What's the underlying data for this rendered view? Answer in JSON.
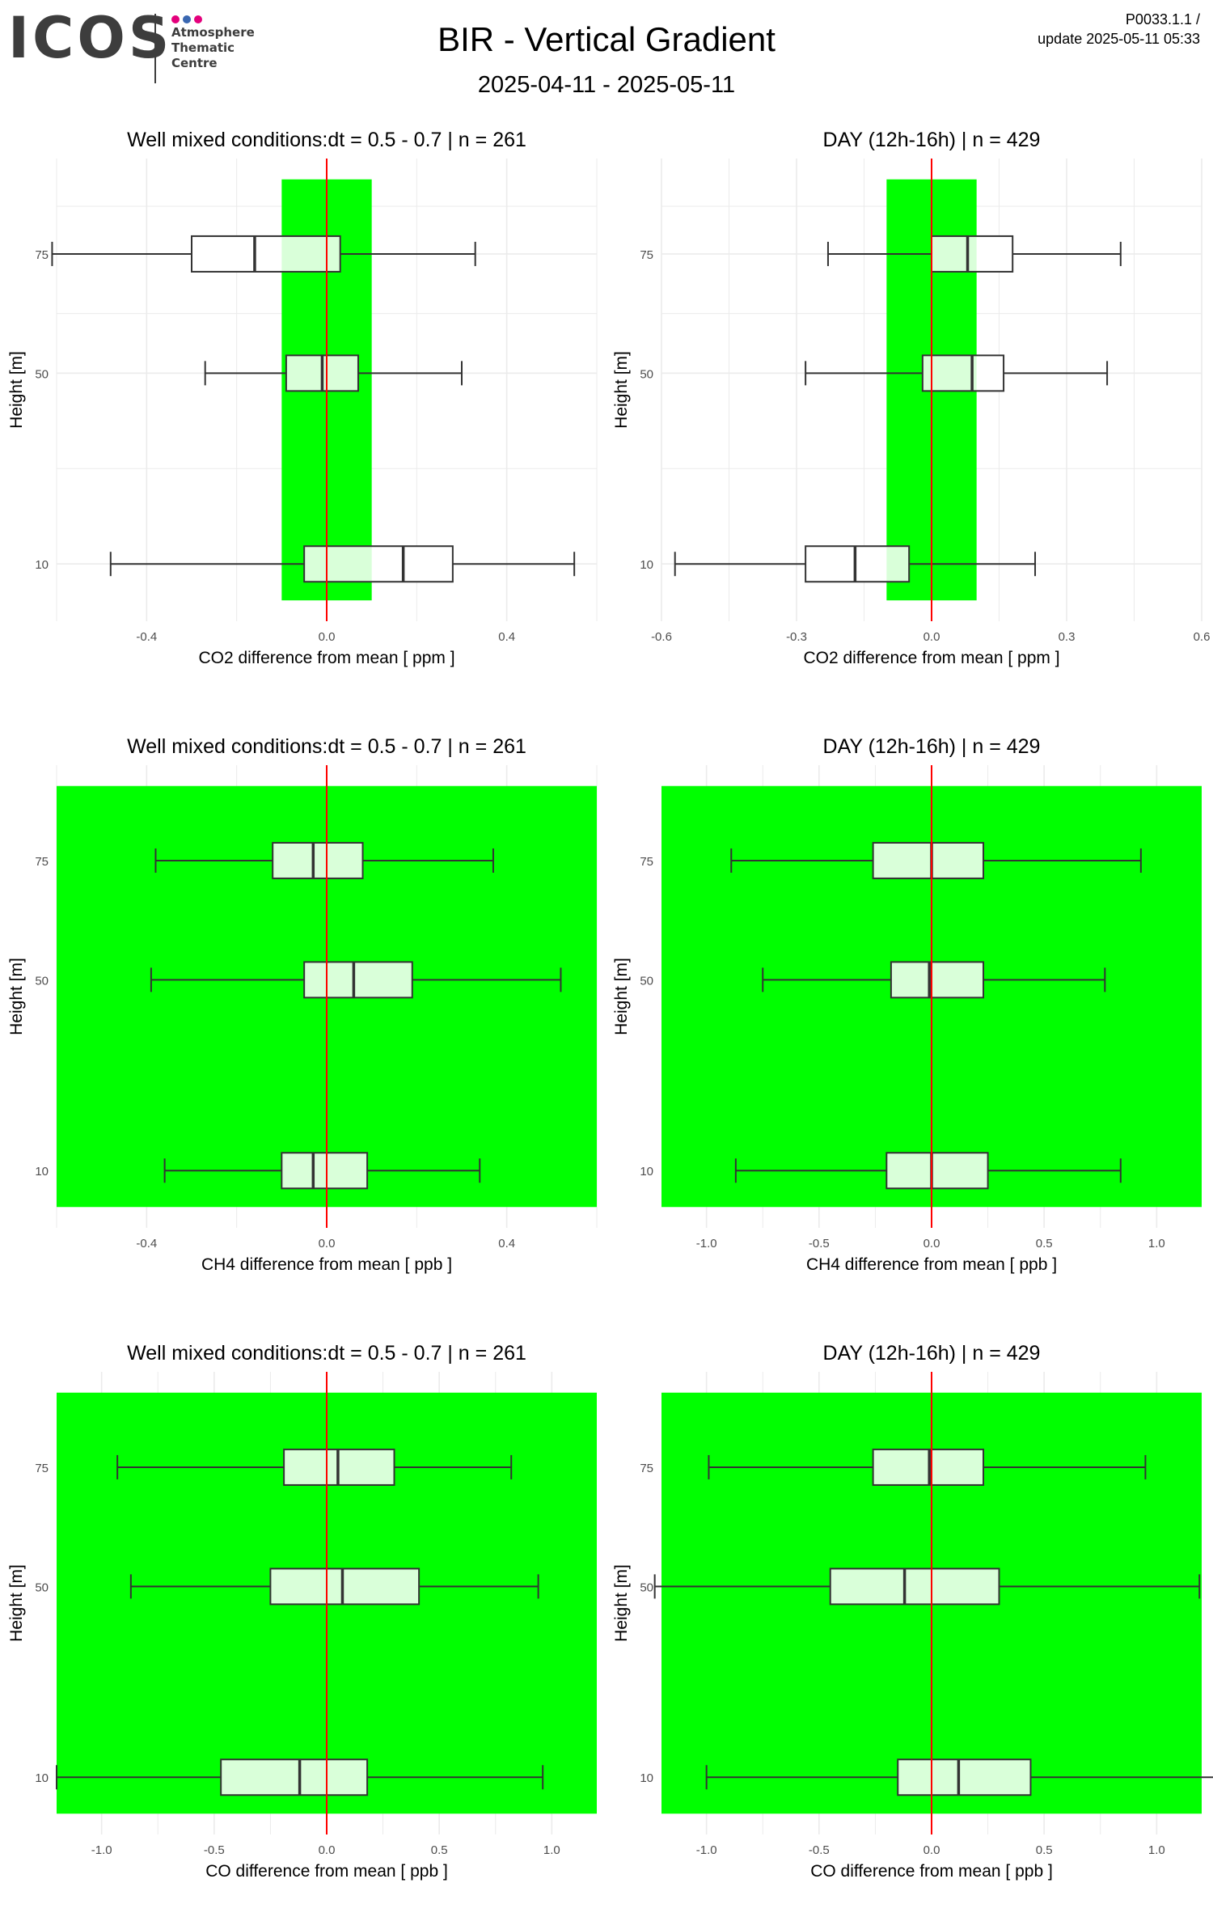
{
  "header": {
    "logo_text": "ICOS",
    "logo_subtitle": [
      "Atmosphere",
      "Thematic",
      "Centre"
    ],
    "logo_dot_colors": [
      "#e4007c",
      "#3a67b1",
      "#e4007c"
    ],
    "logo_color": "#3d3d3d",
    "title": "BIR - Vertical Gradient",
    "period": "2025-04-11 - 2025-05-11",
    "product_code": "P0033.1.1 /",
    "update": "update  2025-05-11 05:33"
  },
  "colors": {
    "tolerance_band": "#00ff00",
    "box_fill": "#d9ffd9",
    "box_outside_fill": "#ffffff",
    "zero_line": "#ff0000",
    "grid": "#ebebeb",
    "whisker": "#333333"
  },
  "chart_data": [
    {
      "type": "box",
      "title": "Well mixed conditions:dt = 0.5 - 0.7 | n = 261",
      "xlabel": "CO2  difference from mean [ ppm ]",
      "ylabel": "Height [m]",
      "xlim": [
        -0.6,
        0.6
      ],
      "x_ticks": [
        -0.4,
        0.0,
        0.4
      ],
      "x_tick_labels": [
        "-0.4",
        "0.0",
        "0.4"
      ],
      "y_ticks": [
        10,
        50,
        75
      ],
      "band": [
        -0.1,
        0.1
      ],
      "boxes": [
        {
          "height": 75,
          "min": -0.61,
          "q1": -0.3,
          "median": -0.16,
          "q3": 0.03,
          "max": 0.33
        },
        {
          "height": 50,
          "min": -0.27,
          "q1": -0.09,
          "median": -0.01,
          "q3": 0.07,
          "max": 0.3
        },
        {
          "height": 10,
          "min": -0.48,
          "q1": -0.05,
          "median": 0.17,
          "q3": 0.28,
          "max": 0.55
        }
      ]
    },
    {
      "type": "box",
      "title": "DAY (12h-16h) | n = 429",
      "xlabel": "CO2  difference from mean [ ppm ]",
      "ylabel": "Height [m]",
      "xlim": [
        -0.6,
        0.6
      ],
      "x_ticks": [
        -0.6,
        -0.3,
        0.0,
        0.3,
        0.6
      ],
      "x_tick_labels": [
        "-0.6",
        "-0.3",
        "0.0",
        "0.3",
        "0.6"
      ],
      "y_ticks": [
        10,
        50,
        75
      ],
      "band": [
        -0.1,
        0.1
      ],
      "boxes": [
        {
          "height": 75,
          "min": -0.23,
          "q1": 0.0,
          "median": 0.08,
          "q3": 0.18,
          "max": 0.42
        },
        {
          "height": 50,
          "min": -0.28,
          "q1": -0.02,
          "median": 0.09,
          "q3": 0.16,
          "max": 0.39
        },
        {
          "height": 10,
          "min": -0.57,
          "q1": -0.28,
          "median": -0.17,
          "q3": -0.05,
          "max": 0.23
        }
      ]
    },
    {
      "type": "box",
      "title": "Well mixed conditions:dt = 0.5 - 0.7 | n = 261",
      "xlabel": "CH4  difference from mean [ ppb ]",
      "ylabel": "Height [m]",
      "xlim": [
        -0.6,
        0.6
      ],
      "x_ticks": [
        -0.4,
        0.0,
        0.4
      ],
      "x_tick_labels": [
        "-0.4",
        "0.0",
        "0.4"
      ],
      "y_ticks": [
        10,
        50,
        75
      ],
      "band": [
        -2,
        2
      ],
      "boxes": [
        {
          "height": 75,
          "min": -0.38,
          "q1": -0.12,
          "median": -0.03,
          "q3": 0.08,
          "max": 0.37
        },
        {
          "height": 50,
          "min": -0.39,
          "q1": -0.05,
          "median": 0.06,
          "q3": 0.19,
          "max": 0.52
        },
        {
          "height": 10,
          "min": -0.36,
          "q1": -0.1,
          "median": -0.03,
          "q3": 0.09,
          "max": 0.34
        }
      ]
    },
    {
      "type": "box",
      "title": "DAY (12h-16h) | n = 429",
      "xlabel": "CH4  difference from mean [ ppb ]",
      "ylabel": "Height [m]",
      "xlim": [
        -1.2,
        1.2
      ],
      "x_ticks": [
        -1.0,
        -0.5,
        0.0,
        0.5,
        1.0
      ],
      "x_tick_labels": [
        "-1.0",
        "-0.5",
        "0.0",
        "0.5",
        "1.0"
      ],
      "y_ticks": [
        10,
        50,
        75
      ],
      "band": [
        -2,
        2
      ],
      "boxes": [
        {
          "height": 75,
          "min": -0.89,
          "q1": -0.26,
          "median": 0.0,
          "q3": 0.23,
          "max": 0.93
        },
        {
          "height": 50,
          "min": -0.75,
          "q1": -0.18,
          "median": -0.01,
          "q3": 0.23,
          "max": 0.77
        },
        {
          "height": 10,
          "min": -0.87,
          "q1": -0.2,
          "median": 0.0,
          "q3": 0.25,
          "max": 0.84
        }
      ]
    },
    {
      "type": "box",
      "title": "Well mixed conditions:dt = 0.5 - 0.7 | n = 261",
      "xlabel": "CO  difference from mean [ ppb ]",
      "ylabel": "Height [m]",
      "xlim": [
        -1.2,
        1.2
      ],
      "x_ticks": [
        -1.0,
        -0.5,
        0.0,
        0.5,
        1.0
      ],
      "x_tick_labels": [
        "-1.0",
        "-0.5",
        "0.0",
        "0.5",
        "1.0"
      ],
      "y_ticks": [
        10,
        50,
        75
      ],
      "band": [
        -2,
        2
      ],
      "boxes": [
        {
          "height": 75,
          "min": -0.93,
          "q1": -0.19,
          "median": 0.05,
          "q3": 0.3,
          "max": 0.82
        },
        {
          "height": 50,
          "min": -0.87,
          "q1": -0.25,
          "median": 0.07,
          "q3": 0.41,
          "max": 0.94
        },
        {
          "height": 10,
          "min": -1.2,
          "q1": -0.47,
          "median": -0.12,
          "q3": 0.18,
          "max": 0.96
        }
      ]
    },
    {
      "type": "box",
      "title": "DAY (12h-16h) | n = 429",
      "xlabel": "CO  difference from mean [ ppb ]",
      "ylabel": "Height [m]",
      "xlim": [
        -1.2,
        1.2
      ],
      "x_ticks": [
        -1.0,
        -0.5,
        0.0,
        0.5,
        1.0
      ],
      "x_tick_labels": [
        "-1.0",
        "-0.5",
        "0.0",
        "0.5",
        "1.0"
      ],
      "y_ticks": [
        10,
        50,
        75
      ],
      "band": [
        -2,
        2
      ],
      "boxes": [
        {
          "height": 75,
          "min": -0.99,
          "q1": -0.26,
          "median": -0.01,
          "q3": 0.23,
          "max": 0.95
        },
        {
          "height": 50,
          "min": -1.23,
          "q1": -0.45,
          "median": -0.12,
          "q3": 0.3,
          "max": 1.19
        },
        {
          "height": 10,
          "min": -1.0,
          "q1": -0.15,
          "median": 0.12,
          "q3": 0.44,
          "max": 1.29
        }
      ]
    }
  ]
}
